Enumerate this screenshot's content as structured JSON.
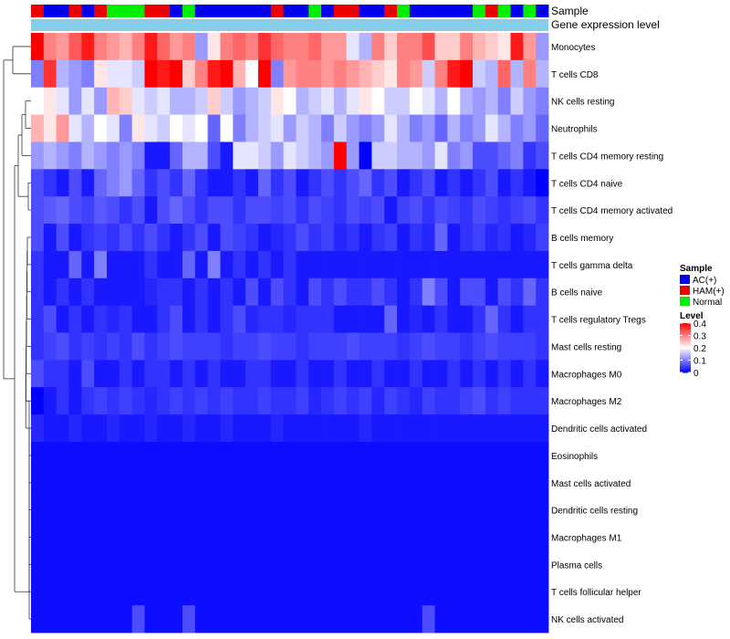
{
  "chart_data": {
    "type": "heatmap",
    "annotation_titles": {
      "sample": "Sample",
      "expression": "Gene expression level"
    },
    "sample_groups": [
      "AC(+)",
      "HAM(+)",
      "Normal"
    ],
    "sample_colors": {
      "AC(+)": "#0000ee",
      "HAM(+)": "#ee0000",
      "Normal": "#00ee00"
    },
    "expression_bar_color": "#87ceeb",
    "samples": [
      "HAM(+)",
      "AC(+)",
      "AC(+)",
      "HAM(+)",
      "AC(+)",
      "HAM(+)",
      "Normal",
      "Normal",
      "Normal",
      "HAM(+)",
      "HAM(+)",
      "AC(+)",
      "Normal",
      "AC(+)",
      "AC(+)",
      "AC(+)",
      "AC(+)",
      "AC(+)",
      "AC(+)",
      "HAM(+)",
      "AC(+)",
      "AC(+)",
      "Normal",
      "AC(+)",
      "HAM(+)",
      "HAM(+)",
      "AC(+)",
      "AC(+)",
      "HAM(+)",
      "Normal",
      "AC(+)",
      "AC(+)",
      "AC(+)",
      "AC(+)",
      "AC(+)",
      "Normal",
      "HAM(+)",
      "Normal",
      "AC(+)",
      "Normal",
      "AC(+)"
    ],
    "rows": [
      "Monocytes",
      "T cells CD8",
      "NK cells resting",
      "Neutrophils",
      "T cells CD4 memory resting",
      "T cells CD4 naive",
      "T cells CD4 memory activated",
      "B cells memory",
      "T cells gamma delta",
      "B cells naive",
      "T cells regulatory  Tregs",
      "Mast cells resting",
      "Macrophages M0",
      "Macrophages M2",
      "Dendritic cells activated",
      "Eosinophils",
      "Mast cells activated",
      "Dendritic cells resting",
      "Macrophages M1",
      "Plasma cells",
      "T cells follicular helper",
      "NK cells activated"
    ],
    "values": [
      [
        0.4,
        0.3,
        0.28,
        0.33,
        0.38,
        0.3,
        0.28,
        0.26,
        0.3,
        0.38,
        0.32,
        0.28,
        0.3,
        0.12,
        0.22,
        0.3,
        0.32,
        0.3,
        0.36,
        0.32,
        0.3,
        0.3,
        0.32,
        0.28,
        0.28,
        0.18,
        0.14,
        0.3,
        0.24,
        0.3,
        0.3,
        0.34,
        0.24,
        0.24,
        0.3,
        0.26,
        0.24,
        0.22,
        0.38,
        0.28,
        0.12
      ],
      [
        0.1,
        0.36,
        0.14,
        0.12,
        0.1,
        0.22,
        0.18,
        0.18,
        0.16,
        0.4,
        0.38,
        0.4,
        0.24,
        0.3,
        0.38,
        0.4,
        0.26,
        0.2,
        0.4,
        0.1,
        0.28,
        0.3,
        0.3,
        0.28,
        0.3,
        0.28,
        0.26,
        0.24,
        0.22,
        0.3,
        0.28,
        0.16,
        0.3,
        0.38,
        0.4,
        0.16,
        0.14,
        0.32,
        0.14,
        0.3,
        0.14
      ],
      [
        0.2,
        0.22,
        0.18,
        0.12,
        0.18,
        0.12,
        0.26,
        0.24,
        0.18,
        0.16,
        0.18,
        0.14,
        0.14,
        0.16,
        0.24,
        0.16,
        0.12,
        0.14,
        0.16,
        0.22,
        0.2,
        0.14,
        0.16,
        0.18,
        0.14,
        0.18,
        0.22,
        0.2,
        0.16,
        0.16,
        0.2,
        0.18,
        0.14,
        0.2,
        0.14,
        0.12,
        0.14,
        0.1,
        0.16,
        0.12,
        0.1
      ],
      [
        0.26,
        0.22,
        0.28,
        0.18,
        0.14,
        0.2,
        0.18,
        0.1,
        0.22,
        0.18,
        0.16,
        0.2,
        0.18,
        0.2,
        0.08,
        0.2,
        0.1,
        0.14,
        0.16,
        0.18,
        0.12,
        0.16,
        0.14,
        0.1,
        0.16,
        0.12,
        0.1,
        0.12,
        0.18,
        0.14,
        0.1,
        0.12,
        0.08,
        0.14,
        0.1,
        0.12,
        0.18,
        0.14,
        0.1,
        0.12,
        0.08
      ],
      [
        0.12,
        0.14,
        0.12,
        0.1,
        0.14,
        0.12,
        0.1,
        0.12,
        0.1,
        0.02,
        0.02,
        0.08,
        0.14,
        0.14,
        0.06,
        0.02,
        0.18,
        0.18,
        0.16,
        0.12,
        0.18,
        0.16,
        0.14,
        0.12,
        0.4,
        0.12,
        0.0,
        0.16,
        0.16,
        0.14,
        0.14,
        0.12,
        0.18,
        0.1,
        0.12,
        0.06,
        0.06,
        0.08,
        0.1,
        0.04,
        0.06
      ],
      [
        0.06,
        0.04,
        0.02,
        0.06,
        0.02,
        0.08,
        0.1,
        0.12,
        0.08,
        0.04,
        0.06,
        0.04,
        0.08,
        0.04,
        0.02,
        0.02,
        0.04,
        0.02,
        0.08,
        0.04,
        0.06,
        0.02,
        0.04,
        0.06,
        0.04,
        0.06,
        0.08,
        0.04,
        0.06,
        0.02,
        0.04,
        0.06,
        0.02,
        0.04,
        0.02,
        0.04,
        0.06,
        0.02,
        0.04,
        0.02,
        0.0
      ],
      [
        0.06,
        0.07,
        0.08,
        0.06,
        0.05,
        0.07,
        0.06,
        0.04,
        0.06,
        0.02,
        0.06,
        0.08,
        0.06,
        0.04,
        0.06,
        0.06,
        0.04,
        0.06,
        0.06,
        0.05,
        0.06,
        0.04,
        0.06,
        0.05,
        0.04,
        0.06,
        0.05,
        0.06,
        0.02,
        0.05,
        0.06,
        0.04,
        0.06,
        0.05,
        0.04,
        0.06,
        0.05,
        0.04,
        0.05,
        0.06,
        0.04
      ],
      [
        0.06,
        0.02,
        0.06,
        0.02,
        0.04,
        0.05,
        0.04,
        0.06,
        0.04,
        0.06,
        0.04,
        0.02,
        0.04,
        0.06,
        0.02,
        0.06,
        0.05,
        0.04,
        0.02,
        0.03,
        0.04,
        0.06,
        0.04,
        0.05,
        0.03,
        0.04,
        0.02,
        0.04,
        0.05,
        0.02,
        0.04,
        0.03,
        0.08,
        0.02,
        0.04,
        0.05,
        0.03,
        0.04,
        0.02,
        0.03,
        0.05
      ],
      [
        0.04,
        0.02,
        0.02,
        0.08,
        0.02,
        0.1,
        0.02,
        0.02,
        0.02,
        0.04,
        0.02,
        0.02,
        0.08,
        0.02,
        0.1,
        0.02,
        0.04,
        0.02,
        0.04,
        0.02,
        0.04,
        0.02,
        0.02,
        0.02,
        0.02,
        0.02,
        0.02,
        0.02,
        0.02,
        0.02,
        0.02,
        0.02,
        0.02,
        0.02,
        0.02,
        0.02,
        0.02,
        0.02,
        0.02,
        0.02,
        0.02
      ],
      [
        0.04,
        0.02,
        0.04,
        0.02,
        0.04,
        0.02,
        0.02,
        0.02,
        0.02,
        0.03,
        0.04,
        0.04,
        0.02,
        0.04,
        0.02,
        0.04,
        0.02,
        0.06,
        0.02,
        0.06,
        0.04,
        0.02,
        0.06,
        0.04,
        0.06,
        0.04,
        0.04,
        0.06,
        0.04,
        0.02,
        0.04,
        0.1,
        0.06,
        0.02,
        0.06,
        0.06,
        0.02,
        0.06,
        0.04,
        0.08,
        0.04
      ],
      [
        0.04,
        0.06,
        0.02,
        0.04,
        0.02,
        0.04,
        0.03,
        0.04,
        0.02,
        0.02,
        0.04,
        0.06,
        0.02,
        0.04,
        0.02,
        0.04,
        0.06,
        0.03,
        0.04,
        0.04,
        0.03,
        0.04,
        0.04,
        0.04,
        0.02,
        0.02,
        0.02,
        0.02,
        0.08,
        0.02,
        0.03,
        0.02,
        0.04,
        0.02,
        0.02,
        0.04,
        0.08,
        0.04,
        0.02,
        0.04,
        0.04
      ],
      [
        0.04,
        0.05,
        0.06,
        0.04,
        0.05,
        0.04,
        0.05,
        0.04,
        0.06,
        0.04,
        0.05,
        0.06,
        0.05,
        0.05,
        0.05,
        0.04,
        0.05,
        0.05,
        0.06,
        0.05,
        0.05,
        0.04,
        0.05,
        0.05,
        0.05,
        0.06,
        0.05,
        0.05,
        0.05,
        0.04,
        0.05,
        0.06,
        0.05,
        0.05,
        0.04,
        0.05,
        0.06,
        0.05,
        0.05,
        0.05,
        0.04
      ],
      [
        0.06,
        0.04,
        0.04,
        0.02,
        0.06,
        0.02,
        0.02,
        0.04,
        0.02,
        0.04,
        0.04,
        0.02,
        0.04,
        0.02,
        0.04,
        0.02,
        0.02,
        0.04,
        0.04,
        0.02,
        0.02,
        0.04,
        0.02,
        0.02,
        0.04,
        0.02,
        0.02,
        0.04,
        0.02,
        0.02,
        0.04,
        0.02,
        0.02,
        0.04,
        0.02,
        0.04,
        0.02,
        0.04,
        0.02,
        0.04,
        0.02
      ],
      [
        0.0,
        0.02,
        0.04,
        0.02,
        0.04,
        0.05,
        0.04,
        0.05,
        0.04,
        0.03,
        0.04,
        0.05,
        0.04,
        0.05,
        0.04,
        0.05,
        0.04,
        0.04,
        0.05,
        0.04,
        0.04,
        0.05,
        0.03,
        0.04,
        0.05,
        0.04,
        0.05,
        0.03,
        0.05,
        0.04,
        0.03,
        0.05,
        0.04,
        0.04,
        0.05,
        0.06,
        0.04,
        0.05,
        0.04,
        0.04,
        0.04
      ],
      [
        0.03,
        0.02,
        0.02,
        0.03,
        0.02,
        0.02,
        0.03,
        0.02,
        0.02,
        0.03,
        0.02,
        0.02,
        0.03,
        0.02,
        0.02,
        0.03,
        0.02,
        0.02,
        0.02,
        0.03,
        0.02,
        0.02,
        0.02,
        0.02,
        0.02,
        0.02,
        0.03,
        0.02,
        0.02,
        0.02,
        0.02,
        0.02,
        0.02,
        0.02,
        0.02,
        0.02,
        0.02,
        0.02,
        0.02,
        0.02,
        0.02
      ],
      [
        0.01,
        0.01,
        0.01,
        0.01,
        0.01,
        0.01,
        0.01,
        0.01,
        0.01,
        0.01,
        0.01,
        0.01,
        0.01,
        0.01,
        0.01,
        0.01,
        0.01,
        0.01,
        0.01,
        0.01,
        0.01,
        0.01,
        0.01,
        0.01,
        0.01,
        0.01,
        0.01,
        0.01,
        0.01,
        0.01,
        0.01,
        0.01,
        0.01,
        0.01,
        0.01,
        0.01,
        0.01,
        0.01,
        0.01,
        0.01,
        0.01
      ],
      [
        0.01,
        0.01,
        0.01,
        0.01,
        0.01,
        0.01,
        0.01,
        0.01,
        0.01,
        0.01,
        0.01,
        0.01,
        0.01,
        0.01,
        0.01,
        0.01,
        0.01,
        0.01,
        0.01,
        0.01,
        0.01,
        0.01,
        0.01,
        0.01,
        0.01,
        0.01,
        0.01,
        0.01,
        0.01,
        0.01,
        0.01,
        0.01,
        0.01,
        0.01,
        0.01,
        0.01,
        0.01,
        0.01,
        0.01,
        0.01,
        0.01
      ],
      [
        0.01,
        0.01,
        0.01,
        0.01,
        0.01,
        0.01,
        0.01,
        0.01,
        0.01,
        0.01,
        0.01,
        0.01,
        0.01,
        0.01,
        0.01,
        0.01,
        0.01,
        0.01,
        0.01,
        0.01,
        0.01,
        0.01,
        0.01,
        0.01,
        0.01,
        0.01,
        0.01,
        0.01,
        0.01,
        0.01,
        0.01,
        0.01,
        0.01,
        0.01,
        0.01,
        0.01,
        0.01,
        0.01,
        0.01,
        0.01,
        0.01
      ],
      [
        0.01,
        0.01,
        0.01,
        0.01,
        0.01,
        0.01,
        0.01,
        0.01,
        0.01,
        0.01,
        0.01,
        0.01,
        0.01,
        0.01,
        0.01,
        0.01,
        0.01,
        0.01,
        0.01,
        0.01,
        0.01,
        0.01,
        0.01,
        0.01,
        0.01,
        0.01,
        0.01,
        0.01,
        0.01,
        0.01,
        0.01,
        0.01,
        0.01,
        0.01,
        0.01,
        0.01,
        0.01,
        0.01,
        0.01,
        0.01,
        0.01
      ],
      [
        0.01,
        0.01,
        0.01,
        0.01,
        0.01,
        0.01,
        0.01,
        0.01,
        0.01,
        0.01,
        0.01,
        0.01,
        0.01,
        0.01,
        0.01,
        0.01,
        0.01,
        0.01,
        0.01,
        0.01,
        0.01,
        0.01,
        0.01,
        0.01,
        0.01,
        0.01,
        0.01,
        0.01,
        0.01,
        0.01,
        0.01,
        0.01,
        0.01,
        0.01,
        0.01,
        0.01,
        0.01,
        0.01,
        0.01,
        0.01,
        0.01
      ],
      [
        0.01,
        0.01,
        0.01,
        0.01,
        0.01,
        0.01,
        0.01,
        0.01,
        0.01,
        0.01,
        0.01,
        0.01,
        0.01,
        0.01,
        0.01,
        0.01,
        0.01,
        0.01,
        0.01,
        0.01,
        0.01,
        0.01,
        0.01,
        0.01,
        0.01,
        0.01,
        0.01,
        0.01,
        0.01,
        0.01,
        0.01,
        0.01,
        0.01,
        0.01,
        0.01,
        0.01,
        0.01,
        0.01,
        0.01,
        0.01,
        0.01
      ],
      [
        0.01,
        0.01,
        0.01,
        0.01,
        0.01,
        0.01,
        0.01,
        0.01,
        0.06,
        0.01,
        0.01,
        0.01,
        0.06,
        0.01,
        0.01,
        0.01,
        0.01,
        0.01,
        0.01,
        0.01,
        0.01,
        0.01,
        0.01,
        0.01,
        0.01,
        0.01,
        0.01,
        0.01,
        0.01,
        0.01,
        0.01,
        0.06,
        0.01,
        0.01,
        0.01,
        0.01,
        0.01,
        0.01,
        0.01,
        0.01,
        0.01
      ]
    ],
    "legend": {
      "sample_title": "Sample",
      "level_title": "Level",
      "level_ticks": [
        "0.4",
        "0.3",
        "0.2",
        "0.1",
        "0"
      ],
      "level_range": [
        0,
        0.4
      ],
      "color_low": "#0000ff",
      "color_mid": "#ffffff",
      "color_high": "#ff0000"
    }
  }
}
